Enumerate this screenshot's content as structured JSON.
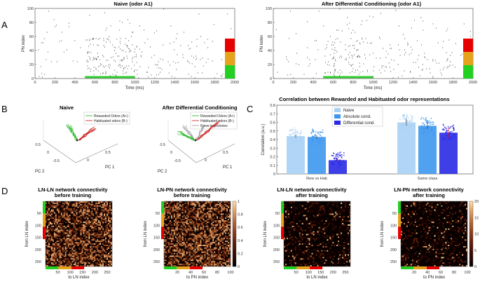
{
  "panel_letters": {
    "a": "A",
    "b": "B",
    "c": "C",
    "d": "D"
  },
  "panel_a": {
    "plots": [
      {
        "title": "Naive (odor A1)",
        "xlabel": "Time (ms)",
        "ylabel": "PN index"
      },
      {
        "title": "After Differential Conditioning (odor A1)",
        "xlabel": "Time (ms)",
        "ylabel": "PN index"
      }
    ],
    "xticks": [
      "0",
      "200",
      "400",
      "600",
      "800",
      "1000",
      "1200",
      "1400",
      "1600",
      "1800",
      "2000"
    ],
    "yticks": [
      "0",
      "20",
      "40",
      "60",
      "80",
      "100"
    ],
    "stimulus_color": "#2ecc2e",
    "class_colors": [
      "#e60000",
      "#e6a21a",
      "#22d022"
    ]
  },
  "panel_b": {
    "plots": [
      {
        "title": "Naive",
        "legend": [
          "Rewarded Odors (A+)",
          "Habituated odors (B-)"
        ]
      },
      {
        "title": "After Differential Conditioning",
        "legend": [
          "Rewarded Odors (A+)",
          "Habituated odors (B-)",
          "Naive trajectories"
        ]
      }
    ],
    "axis_labels": {
      "pc1": "PC 1",
      "pc2": "PC 2"
    },
    "ticks": [
      "0.5",
      "0",
      "-0.5",
      "0",
      "0.5"
    ],
    "colors": {
      "rewarded": "#18b418",
      "habituated": "#c81414",
      "naive": "#999999"
    }
  },
  "chart_data": {
    "type": "bar",
    "title": "Correlation between Rewarded and Habituated odor representations",
    "categories": [
      "Rew vs Hab",
      "Same class"
    ],
    "series": [
      {
        "name": "Naive",
        "values": [
          0.44,
          0.6
        ],
        "color": "#a9d0f5"
      },
      {
        "name": "Absolute cond.",
        "values": [
          0.43,
          0.56
        ],
        "color": "#3d97ee"
      },
      {
        "name": "Differential cond.",
        "values": [
          0.16,
          0.48
        ],
        "color": "#2a2ae6"
      }
    ],
    "error_bars": [
      [
        0.02,
        0.04
      ],
      [
        0.02,
        0.04
      ],
      [
        0.02,
        0.06
      ]
    ],
    "xlabel": "",
    "ylabel": "Correlation (a.u.)",
    "ylim": [
      0,
      0.8
    ],
    "yticks": [
      "0",
      "0.1",
      "0.2",
      "0.3",
      "0.4",
      "0.5",
      "0.6",
      "0.7",
      "0.8"
    ],
    "legend": [
      "Naive",
      "Absolute cond.",
      "Differential cond."
    ]
  },
  "panel_d": {
    "plots": [
      {
        "title1": "LN-LN network connectivity",
        "title2": "before training",
        "xlabel": "to LN index",
        "ylabel": "from LN index",
        "xticks": [
          "50",
          "100",
          "150",
          "200",
          "250"
        ],
        "yticks": [
          "50",
          "100",
          "150",
          "200",
          "250"
        ]
      },
      {
        "title1": "LN-PN network connectivity",
        "title2": "before training",
        "xlabel": "to PN index",
        "ylabel": "from LN index",
        "xticks": [
          "20",
          "40",
          "60",
          "80",
          "100"
        ],
        "yticks": [
          "50",
          "100",
          "150",
          "200",
          "250"
        ]
      },
      {
        "title1": "LN-LN network connectivity",
        "title2": "after training",
        "xlabel": "to LN index",
        "ylabel": "from LN index",
        "xticks": [
          "50",
          "100",
          "150",
          "200",
          "250"
        ],
        "yticks": [
          "50",
          "100",
          "150",
          "200",
          "250"
        ]
      },
      {
        "title1": "LN-PN network connectivity",
        "title2": "after training",
        "xlabel": "to PN index",
        "ylabel": "from LN index",
        "xticks": [
          "20",
          "40",
          "60",
          "80",
          "100"
        ],
        "yticks": [
          "50",
          "100",
          "150",
          "200",
          "250"
        ]
      }
    ],
    "colorbars": [
      {
        "ticks": [
          "0",
          "0.2",
          "0.4",
          "0.6",
          "0.8",
          "1"
        ]
      },
      {
        "ticks": [
          "0",
          "5",
          "10",
          "15",
          "20"
        ]
      }
    ]
  }
}
